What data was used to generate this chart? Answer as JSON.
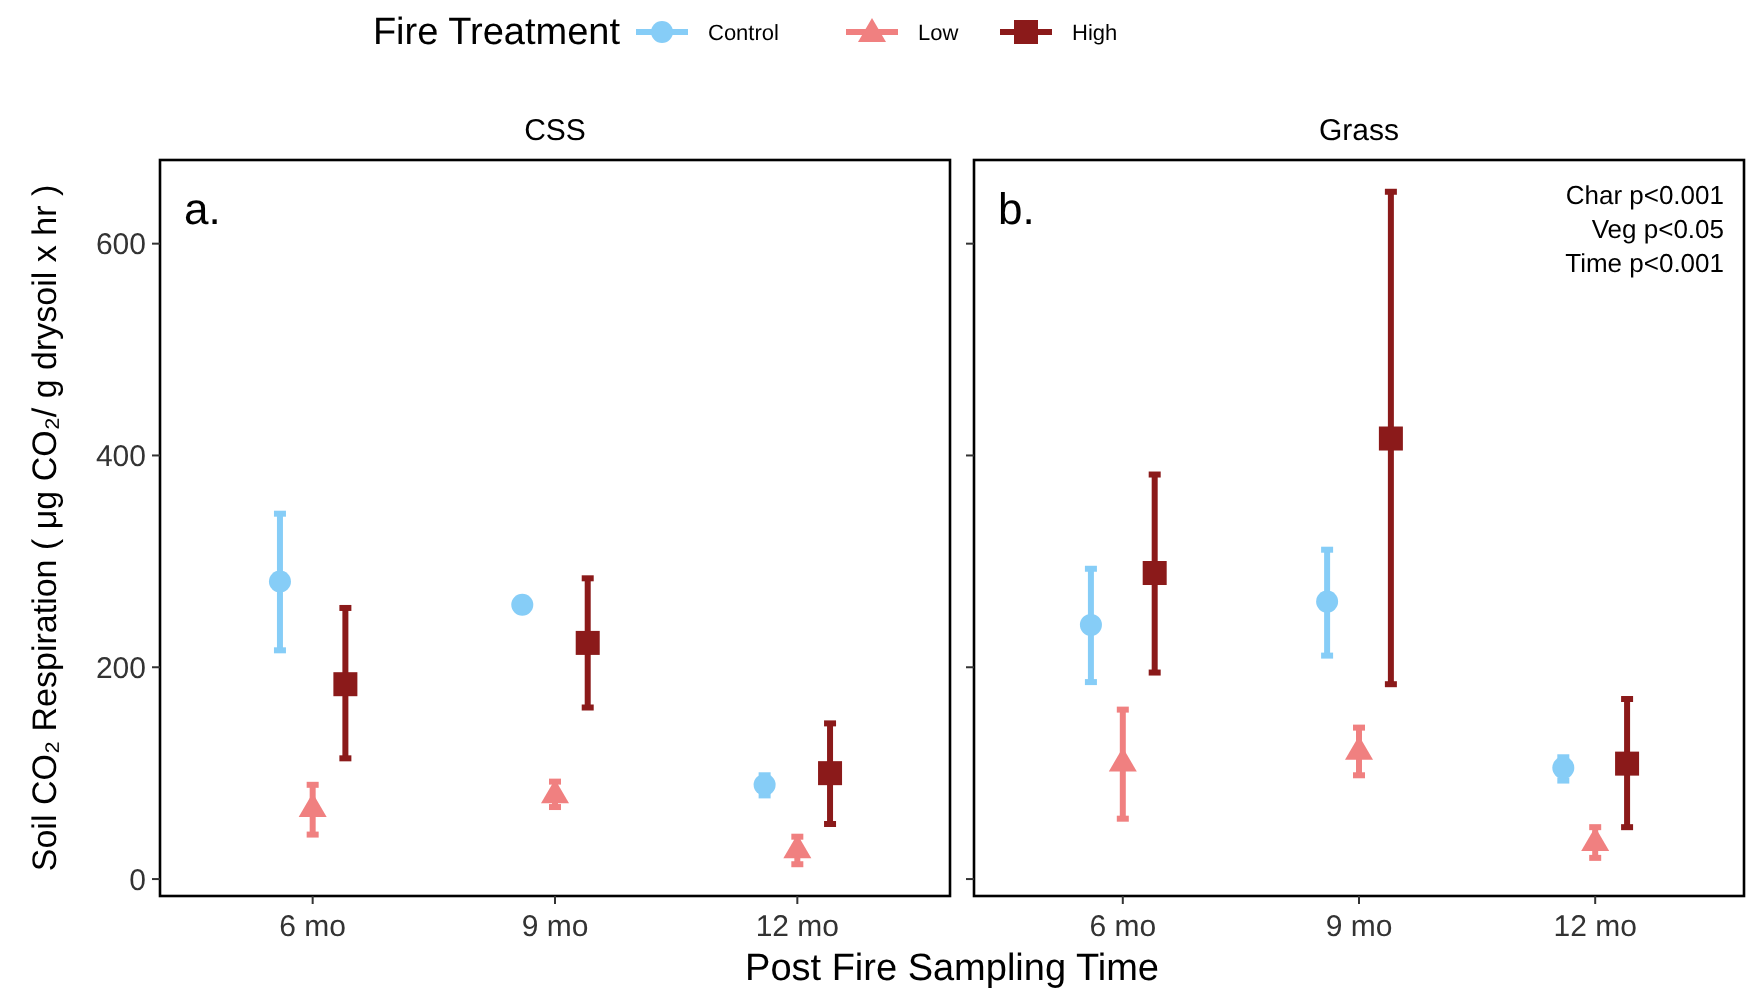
{
  "chart_data": [
    {
      "type": "scatter",
      "title": "CSS",
      "xlabel": "Post Fire Sampling Time",
      "ylabel": "Soil CO₂ Respiration ( μg CO₂/ g drysoil x hr )",
      "legend_title": "Fire Treatment",
      "legend": "top",
      "annotations": [
        "a."
      ],
      "categories": [
        "6 mo",
        "9 mo",
        "12 mo"
      ],
      "ylim": [
        -16,
        679
      ],
      "yticks": [
        0,
        200,
        400,
        600
      ],
      "series": [
        {
          "name": "Control",
          "color": "#86cdf7",
          "marker": "circle",
          "values": [
            281,
            259,
            89
          ],
          "errors": [
            [
              216,
              345
            ],
            null,
            [
              79,
              98
            ]
          ]
        },
        {
          "name": "Low",
          "color": "#f08080",
          "marker": "triangle",
          "values": [
            68,
            81,
            29
          ],
          "errors": [
            [
              42,
              89
            ],
            [
              68,
              92
            ],
            [
              14,
              40
            ]
          ]
        },
        {
          "name": "High",
          "color": "#8b1a1a",
          "marker": "square",
          "values": [
            184,
            223,
            100
          ],
          "errors": [
            [
              114,
              256
            ],
            [
              162,
              284
            ],
            [
              52,
              147
            ]
          ]
        }
      ]
    },
    {
      "type": "scatter",
      "title": "Grass",
      "tick_labels": "x",
      "annotations": [
        "b.",
        "Char p<0.001\nVeg p<0.05\nTime p<0.001"
      ],
      "categories": [
        "6 mo",
        "9 mo",
        "12 mo"
      ],
      "ylim": [
        -16,
        679
      ],
      "yticks": [
        0,
        200,
        400,
        600
      ],
      "series": [
        {
          "color": "#86cdf7",
          "marker": "circle",
          "values": [
            240,
            262,
            105
          ],
          "errors": [
            [
              186,
              293
            ],
            [
              211,
              311
            ],
            [
              93,
              115
            ]
          ]
        },
        {
          "color": "#f08080",
          "marker": "triangle",
          "values": [
            111,
            122,
            36
          ],
          "errors": [
            [
              57,
              160
            ],
            [
              98,
              143
            ],
            [
              20,
              49
            ]
          ]
        },
        {
          "color": "#8b1a1a",
          "marker": "square",
          "values": [
            289,
            416,
            109
          ],
          "errors": [
            [
              195,
              382
            ],
            [
              184,
              649
            ],
            [
              49,
              170
            ]
          ]
        }
      ]
    }
  ]
}
